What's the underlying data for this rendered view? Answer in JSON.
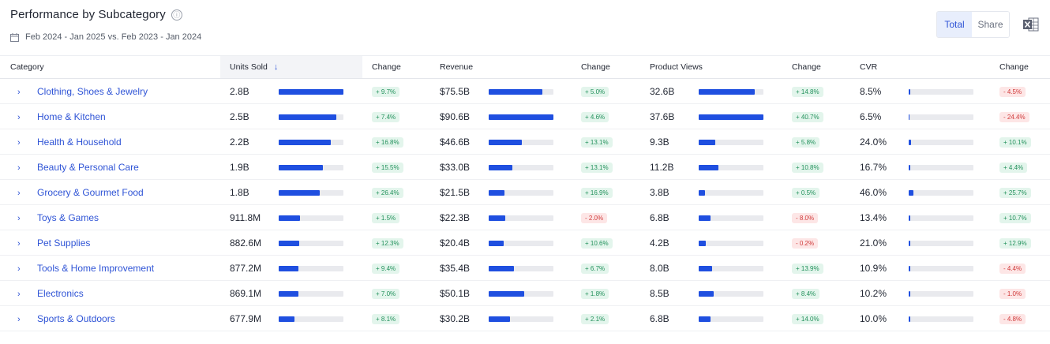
{
  "header": {
    "title": "Performance by Subcategory",
    "info_icon": "ⓘ",
    "date_range": "Feb 2024 - Jan 2025 vs. Feb 2023 - Jan 2024"
  },
  "toggle": {
    "total": "Total",
    "share": "Share"
  },
  "columns": {
    "category": "Category",
    "units_sold": "Units Sold",
    "units_change": "Change",
    "revenue": "Revenue",
    "revenue_change": "Change",
    "views": "Product Views",
    "views_change": "Change",
    "cvr": "CVR",
    "cvr_change": "Change"
  },
  "sort_indicator": "↓",
  "rows": [
    {
      "category": "Clothing, Shoes & Jewelry",
      "units": "2.8B",
      "units_bar": 1.0,
      "units_change": "+ 9.7%",
      "units_dir": "pos",
      "revenue": "$75.5B",
      "revenue_bar": 0.83,
      "revenue_change": "+ 5.0%",
      "revenue_dir": "pos",
      "views": "32.6B",
      "views_bar": 0.87,
      "views_change": "+ 14.8%",
      "views_dir": "pos",
      "cvr": "8.5%",
      "cvr_bar": 0.02,
      "cvr_change": "- 4.5%",
      "cvr_dir": "neg"
    },
    {
      "category": "Home & Kitchen",
      "units": "2.5B",
      "units_bar": 0.89,
      "units_change": "+ 7.4%",
      "units_dir": "pos",
      "revenue": "$90.6B",
      "revenue_bar": 1.0,
      "revenue_change": "+ 4.6%",
      "revenue_dir": "pos",
      "views": "37.6B",
      "views_bar": 1.0,
      "views_change": "+ 40.7%",
      "views_dir": "pos",
      "cvr": "6.5%",
      "cvr_bar": 0.015,
      "cvr_change": "- 24.4%",
      "cvr_dir": "neg"
    },
    {
      "category": "Health & Household",
      "units": "2.2B",
      "units_bar": 0.8,
      "units_change": "+ 16.8%",
      "units_dir": "pos",
      "revenue": "$46.6B",
      "revenue_bar": 0.51,
      "revenue_change": "+ 13.1%",
      "revenue_dir": "pos",
      "views": "9.3B",
      "views_bar": 0.25,
      "views_change": "+ 5.8%",
      "views_dir": "pos",
      "cvr": "24.0%",
      "cvr_bar": 0.04,
      "cvr_change": "+ 10.1%",
      "cvr_dir": "pos"
    },
    {
      "category": "Beauty & Personal Care",
      "units": "1.9B",
      "units_bar": 0.68,
      "units_change": "+ 15.5%",
      "units_dir": "pos",
      "revenue": "$33.0B",
      "revenue_bar": 0.36,
      "revenue_change": "+ 13.1%",
      "revenue_dir": "pos",
      "views": "11.2B",
      "views_bar": 0.3,
      "views_change": "+ 10.8%",
      "views_dir": "pos",
      "cvr": "16.7%",
      "cvr_bar": 0.03,
      "cvr_change": "+ 4.4%",
      "cvr_dir": "pos"
    },
    {
      "category": "Grocery & Gourmet Food",
      "units": "1.8B",
      "units_bar": 0.64,
      "units_change": "+ 26.4%",
      "units_dir": "pos",
      "revenue": "$21.5B",
      "revenue_bar": 0.24,
      "revenue_change": "+ 16.9%",
      "revenue_dir": "pos",
      "views": "3.8B",
      "views_bar": 0.1,
      "views_change": "+ 0.5%",
      "views_dir": "pos",
      "cvr": "46.0%",
      "cvr_bar": 0.07,
      "cvr_change": "+ 25.7%",
      "cvr_dir": "pos"
    },
    {
      "category": "Toys & Games",
      "units": "911.8M",
      "units_bar": 0.33,
      "units_change": "+ 1.5%",
      "units_dir": "pos",
      "revenue": "$22.3B",
      "revenue_bar": 0.25,
      "revenue_change": "- 2.0%",
      "revenue_dir": "neg",
      "views": "6.8B",
      "views_bar": 0.18,
      "views_change": "- 8.0%",
      "views_dir": "neg",
      "cvr": "13.4%",
      "cvr_bar": 0.02,
      "cvr_change": "+ 10.7%",
      "cvr_dir": "pos"
    },
    {
      "category": "Pet Supplies",
      "units": "882.6M",
      "units_bar": 0.32,
      "units_change": "+ 12.3%",
      "units_dir": "pos",
      "revenue": "$20.4B",
      "revenue_bar": 0.23,
      "revenue_change": "+ 10.6%",
      "revenue_dir": "pos",
      "views": "4.2B",
      "views_bar": 0.11,
      "views_change": "- 0.2%",
      "views_dir": "neg",
      "cvr": "21.0%",
      "cvr_bar": 0.03,
      "cvr_change": "+ 12.9%",
      "cvr_dir": "pos"
    },
    {
      "category": "Tools & Home Improvement",
      "units": "877.2M",
      "units_bar": 0.31,
      "units_change": "+ 9.4%",
      "units_dir": "pos",
      "revenue": "$35.4B",
      "revenue_bar": 0.39,
      "revenue_change": "+ 6.7%",
      "revenue_dir": "pos",
      "views": "8.0B",
      "views_bar": 0.21,
      "views_change": "+ 13.9%",
      "views_dir": "pos",
      "cvr": "10.9%",
      "cvr_bar": 0.02,
      "cvr_change": "- 4.4%",
      "cvr_dir": "neg"
    },
    {
      "category": "Electronics",
      "units": "869.1M",
      "units_bar": 0.31,
      "units_change": "+ 7.0%",
      "units_dir": "pos",
      "revenue": "$50.1B",
      "revenue_bar": 0.55,
      "revenue_change": "+ 1.8%",
      "revenue_dir": "pos",
      "views": "8.5B",
      "views_bar": 0.23,
      "views_change": "+ 8.4%",
      "views_dir": "pos",
      "cvr": "10.2%",
      "cvr_bar": 0.02,
      "cvr_change": "- 1.0%",
      "cvr_dir": "neg"
    },
    {
      "category": "Sports & Outdoors",
      "units": "677.9M",
      "units_bar": 0.24,
      "units_change": "+ 8.1%",
      "units_dir": "pos",
      "revenue": "$30.2B",
      "revenue_bar": 0.33,
      "revenue_change": "+ 2.1%",
      "revenue_dir": "pos",
      "views": "6.8B",
      "views_bar": 0.18,
      "views_change": "+ 14.0%",
      "views_dir": "pos",
      "cvr": "10.0%",
      "cvr_bar": 0.02,
      "cvr_change": "- 4.8%",
      "cvr_dir": "neg"
    }
  ],
  "colors": {
    "accent": "#1f4fe0",
    "link": "#2f54d6",
    "positive": "#23915c",
    "negative": "#d03a3a"
  },
  "icons": {
    "info": "info-icon",
    "calendar": "calendar-icon",
    "excel": "excel-export-icon",
    "expand": "chevron-right-icon",
    "sort": "arrow-down-icon"
  }
}
